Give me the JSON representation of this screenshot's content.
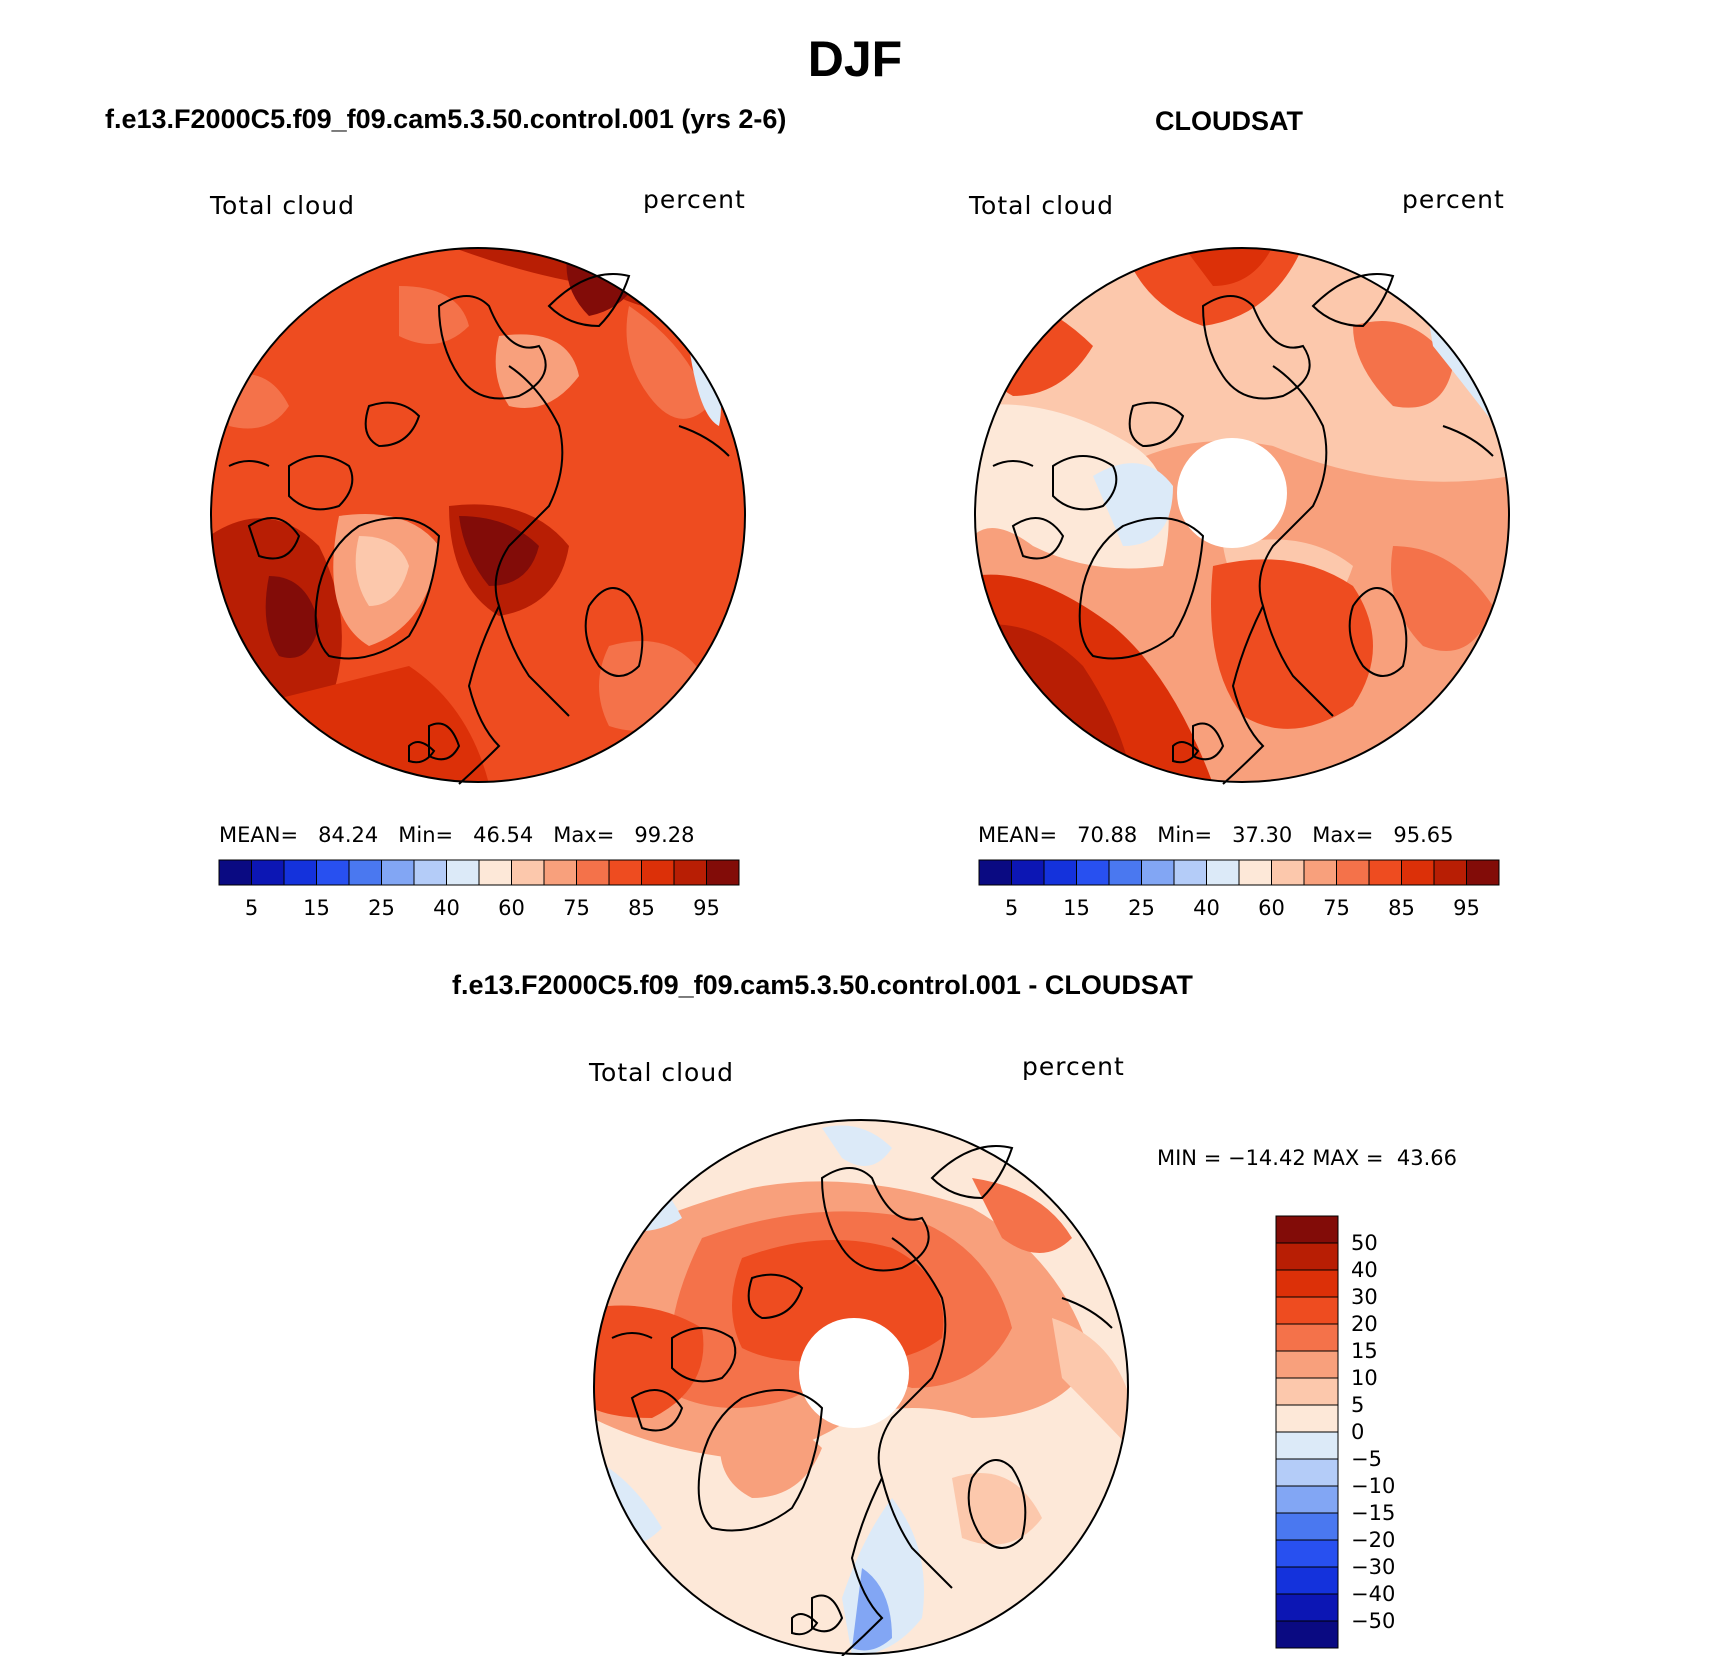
{
  "main_title": "DJF",
  "panels": [
    {
      "title": "f.e13.F2000C5.f09_f09.cam5.3.50.control.001 (yrs 2-6)",
      "left_label": "Total cloud",
      "right_label": "percent",
      "stats": {
        "mean_label": "MEAN=",
        "mean": "84.24",
        "min_label": "Min=",
        "min": "46.54",
        "max_label": "Max=",
        "max": "99.28"
      }
    },
    {
      "title": "CLOUDSAT",
      "left_label": "Total cloud",
      "right_label": "percent",
      "stats": {
        "mean_label": "MEAN=",
        "mean": "70.88",
        "min_label": "Min=",
        "min": "37.30",
        "max_label": "Max=",
        "max": "95.65"
      }
    },
    {
      "title": "f.e13.F2000C5.f09_f09.cam5.3.50.control.001 - CLOUDSAT",
      "left_label": "Total cloud",
      "right_label": "percent",
      "minmax": "MIN = −14.42 MAX =  43.66"
    }
  ],
  "colorbar_horizontal": {
    "labels": [
      "5",
      "15",
      "25",
      "40",
      "60",
      "75",
      "85",
      "95"
    ],
    "colors": [
      "#0a0a82",
      "#0c16b4",
      "#1432dc",
      "#2850f0",
      "#4a78f0",
      "#82a6f4",
      "#b4ccf8",
      "#dceaf8",
      "#fde8d8",
      "#fcc8ac",
      "#f8a07c",
      "#f4724a",
      "#ee4c20",
      "#dc3008",
      "#b81e04",
      "#820c08"
    ]
  },
  "colorbar_vertical": {
    "labels": [
      "50",
      "40",
      "30",
      "20",
      "15",
      "10",
      "5",
      "0",
      "−5",
      "−10",
      "−15",
      "−20",
      "−30",
      "−40",
      "−50"
    ],
    "colors": [
      "#820c08",
      "#b81e04",
      "#dc3008",
      "#ee4c20",
      "#f4724a",
      "#f8a07c",
      "#fcc8ac",
      "#fde8d8",
      "#dceaf8",
      "#b4ccf8",
      "#82a6f4",
      "#4a78f0",
      "#2850f0",
      "#1432dc",
      "#0c16b4",
      "#0a0a82"
    ]
  }
}
